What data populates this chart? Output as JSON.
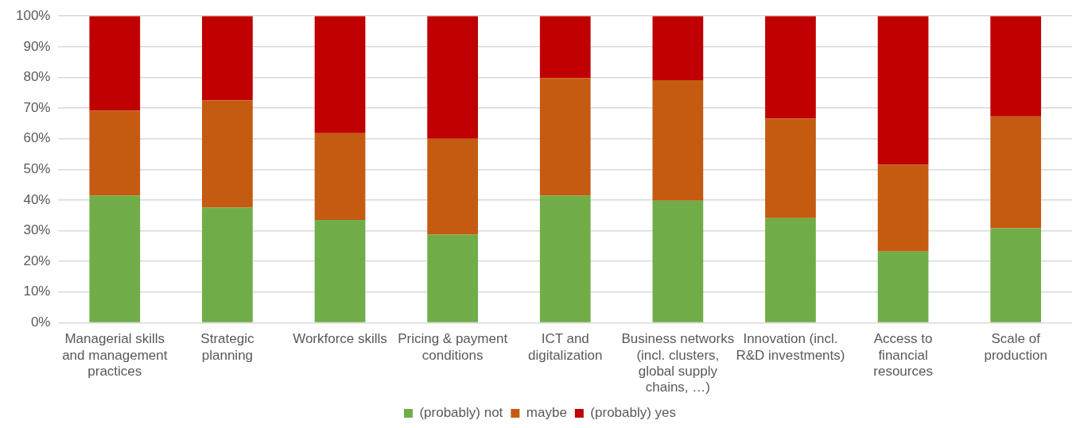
{
  "chart_data": {
    "type": "bar",
    "stacked": true,
    "categories": [
      "Managerial skills and management practices",
      "Strategic planning",
      "Workforce skills",
      "Pricing & payment conditions",
      "ICT and digitalization",
      "Business networks (incl. clusters, global supply chains, …)",
      "Innovation (incl. R&D investments)",
      "Access to financial resources",
      "Scale of production"
    ],
    "series": [
      {
        "name": "(probably) not",
        "color": "#70ad47",
        "values": [
          41.5,
          37.5,
          33.5,
          28.7,
          41.5,
          39.8,
          34.1,
          23.2,
          30.8
        ]
      },
      {
        "name": "maybe",
        "color": "#c55a11",
        "values": [
          27.7,
          35,
          28.3,
          31.3,
          38.3,
          39.3,
          32.5,
          28.3,
          36.4
        ]
      },
      {
        "name": "(probably) yes",
        "color": "#c00000",
        "values": [
          30.8,
          27.5,
          38.2,
          40,
          20.2,
          20.9,
          33.4,
          48.5,
          32.8
        ]
      }
    ],
    "ylim": [
      0,
      100
    ],
    "yticks": [
      {
        "value": 0,
        "label": "0%"
      },
      {
        "value": 10,
        "label": "10%"
      },
      {
        "value": 20,
        "label": "20%"
      },
      {
        "value": 30,
        "label": "30%"
      },
      {
        "value": 40,
        "label": "40%"
      },
      {
        "value": 50,
        "label": "50%"
      },
      {
        "value": 60,
        "label": "60%"
      },
      {
        "value": 70,
        "label": "70%"
      },
      {
        "value": 80,
        "label": "80%"
      },
      {
        "value": 90,
        "label": "90%"
      },
      {
        "value": 100,
        "label": "100%"
      }
    ],
    "grid": "y",
    "legend": "bottom"
  }
}
